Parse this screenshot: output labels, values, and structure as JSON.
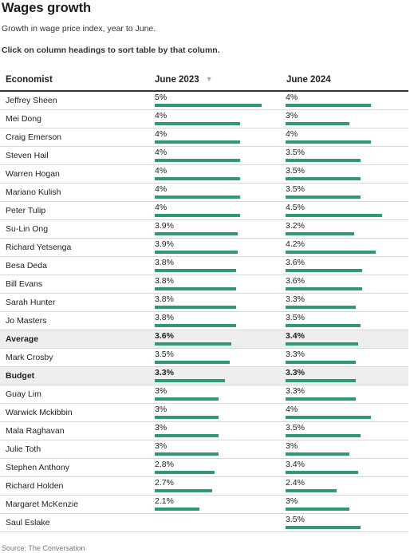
{
  "header": {
    "title": "Wages growth",
    "subtitle": "Growth in wage price index, year to June.",
    "instructions": "Click on column headings to sort table by that column."
  },
  "table": {
    "columns": [
      {
        "key": "economist",
        "label": "Economist",
        "sorted": false
      },
      {
        "key": "june_2023",
        "label": "June 2023",
        "sorted": true,
        "sort_icon": "sort-descending-icon"
      },
      {
        "key": "june_2024",
        "label": "June 2024",
        "sorted": false
      }
    ],
    "bar_scale_max": 5.6,
    "bar_color": "#2f9a72",
    "highlight_color": "#eeeeee",
    "rows": [
      {
        "economist": "Jeffrey Sheen",
        "june_2023": "5%",
        "june_2023_value": 5.0,
        "june_2024": "4%",
        "june_2024_value": 4.0,
        "highlight": false
      },
      {
        "economist": "Mei Dong",
        "june_2023": "4%",
        "june_2023_value": 4.0,
        "june_2024": "3%",
        "june_2024_value": 3.0,
        "highlight": false
      },
      {
        "economist": "Craig Emerson",
        "june_2023": "4%",
        "june_2023_value": 4.0,
        "june_2024": "4%",
        "june_2024_value": 4.0,
        "highlight": false
      },
      {
        "economist": "Steven Hail",
        "june_2023": "4%",
        "june_2023_value": 4.0,
        "june_2024": "3.5%",
        "june_2024_value": 3.5,
        "highlight": false
      },
      {
        "economist": "Warren Hogan",
        "june_2023": "4%",
        "june_2023_value": 4.0,
        "june_2024": "3.5%",
        "june_2024_value": 3.5,
        "highlight": false
      },
      {
        "economist": "Mariano Kulish",
        "june_2023": "4%",
        "june_2023_value": 4.0,
        "june_2024": "3.5%",
        "june_2024_value": 3.5,
        "highlight": false
      },
      {
        "economist": "Peter Tulip",
        "june_2023": "4%",
        "june_2023_value": 4.0,
        "june_2024": "4.5%",
        "june_2024_value": 4.5,
        "highlight": false
      },
      {
        "economist": "Su-Lin Ong",
        "june_2023": "3.9%",
        "june_2023_value": 3.9,
        "june_2024": "3.2%",
        "june_2024_value": 3.2,
        "highlight": false
      },
      {
        "economist": "Richard Yetsenga",
        "june_2023": "3.9%",
        "june_2023_value": 3.9,
        "june_2024": "4.2%",
        "june_2024_value": 4.2,
        "highlight": false
      },
      {
        "economist": "Besa Deda",
        "june_2023": "3.8%",
        "june_2023_value": 3.8,
        "june_2024": "3.6%",
        "june_2024_value": 3.6,
        "highlight": false
      },
      {
        "economist": "Bill Evans",
        "june_2023": "3.8%",
        "june_2023_value": 3.8,
        "june_2024": "3.6%",
        "june_2024_value": 3.6,
        "highlight": false
      },
      {
        "economist": "Sarah Hunter",
        "june_2023": "3.8%",
        "june_2023_value": 3.8,
        "june_2024": "3.3%",
        "june_2024_value": 3.3,
        "highlight": false
      },
      {
        "economist": "Jo Masters",
        "june_2023": "3.8%",
        "june_2023_value": 3.8,
        "june_2024": "3.5%",
        "june_2024_value": 3.5,
        "highlight": false
      },
      {
        "economist": "Average",
        "june_2023": "3.6%",
        "june_2023_value": 3.6,
        "june_2024": "3.4%",
        "june_2024_value": 3.4,
        "highlight": true
      },
      {
        "economist": "Mark Crosby",
        "june_2023": "3.5%",
        "june_2023_value": 3.5,
        "june_2024": "3.3%",
        "june_2024_value": 3.3,
        "highlight": false
      },
      {
        "economist": "Budget",
        "june_2023": "3.3%",
        "june_2023_value": 3.3,
        "june_2024": "3.3%",
        "june_2024_value": 3.3,
        "highlight": true
      },
      {
        "economist": "Guay Lim",
        "june_2023": "3%",
        "june_2023_value": 3.0,
        "june_2024": "3.3%",
        "june_2024_value": 3.3,
        "highlight": false
      },
      {
        "economist": "Warwick Mckibbin",
        "june_2023": "3%",
        "june_2023_value": 3.0,
        "june_2024": "4%",
        "june_2024_value": 4.0,
        "highlight": false
      },
      {
        "economist": "Mala Raghavan",
        "june_2023": "3%",
        "june_2023_value": 3.0,
        "june_2024": "3.5%",
        "june_2024_value": 3.5,
        "highlight": false
      },
      {
        "economist": "Julie Toth",
        "june_2023": "3%",
        "june_2023_value": 3.0,
        "june_2024": "3%",
        "june_2024_value": 3.0,
        "highlight": false
      },
      {
        "economist": "Stephen Anthony",
        "june_2023": "2.8%",
        "june_2023_value": 2.8,
        "june_2024": "3.4%",
        "june_2024_value": 3.4,
        "highlight": false
      },
      {
        "economist": "Richard Holden",
        "june_2023": "2.7%",
        "june_2023_value": 2.7,
        "june_2024": "2.4%",
        "june_2024_value": 2.4,
        "highlight": false
      },
      {
        "economist": "Margaret McKenzie",
        "june_2023": "2.1%",
        "june_2023_value": 2.1,
        "june_2024": "3%",
        "june_2024_value": 3.0,
        "highlight": false
      },
      {
        "economist": "Saul Eslake",
        "june_2023": "",
        "june_2023_value": null,
        "june_2024": "3.5%",
        "june_2024_value": 3.5,
        "highlight": false
      }
    ]
  },
  "footer": {
    "source": "Source: The Conversation"
  }
}
